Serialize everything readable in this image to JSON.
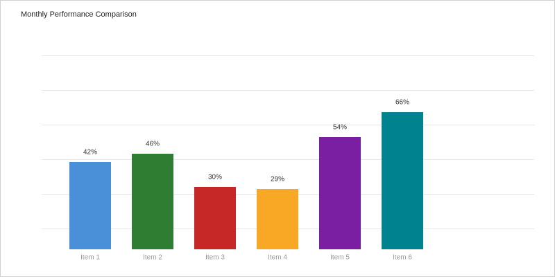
{
  "chart_data": {
    "type": "bar",
    "title": "Monthly Performance Comparison",
    "categories": [
      "Item 1",
      "Item 2",
      "Item 3",
      "Item 4",
      "Item 5",
      "Item 6"
    ],
    "values": [
      42,
      46,
      30,
      29,
      54,
      66
    ],
    "value_labels": [
      "42%",
      "46%",
      "30%",
      "29%",
      "54%",
      "66%"
    ],
    "colors": [
      "#4a90d9",
      "#2e7d32",
      "#c62828",
      "#f9a825",
      "#7b1fa2",
      "#00838f"
    ],
    "ylim": [
      0,
      100
    ],
    "grid": true
  }
}
